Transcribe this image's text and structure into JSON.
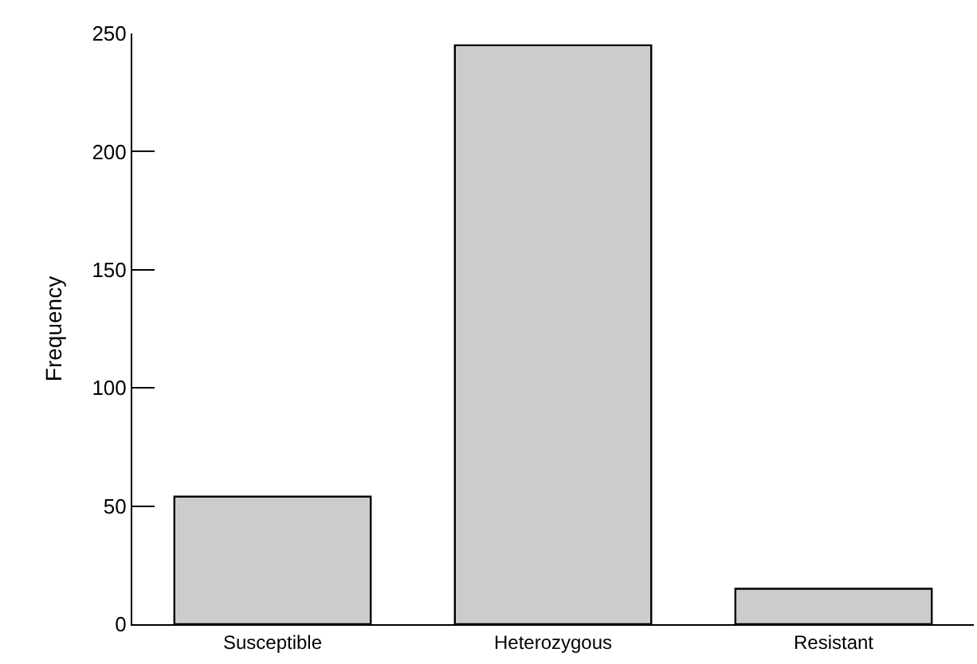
{
  "chart_data": {
    "type": "bar",
    "ylabel": "Frequency",
    "categories": [
      "Susceptible",
      "Heterozygous",
      "Resistant"
    ],
    "values": [
      54,
      245,
      15
    ],
    "color": "#cccccc",
    "ylim": [
      0,
      250
    ],
    "yticks": [
      0,
      50,
      100,
      150,
      200,
      250
    ]
  }
}
